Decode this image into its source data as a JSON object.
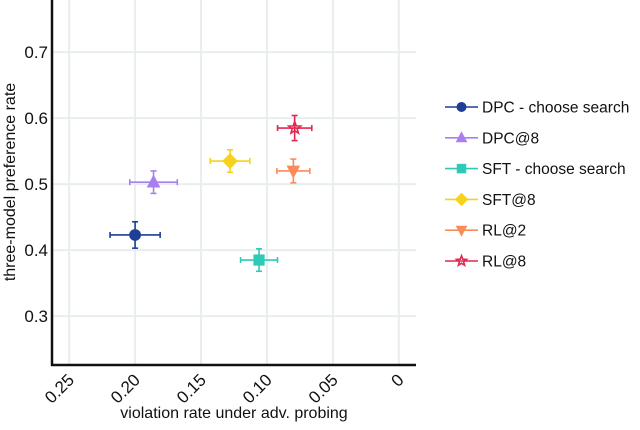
{
  "chart_data": {
    "type": "scatter",
    "title": "",
    "xlabel": "violation rate under adv. probing",
    "ylabel": "three-model preference rate",
    "x_reversed": true,
    "xlim": [
      0.263,
      -0.013
    ],
    "ylim": [
      0.226,
      0.779
    ],
    "xticks": [
      0.25,
      0.2,
      0.15,
      0.1,
      0.05,
      0
    ],
    "xtick_labels": [
      "0.25",
      "0.20",
      "0.15",
      "0.10",
      "0.05",
      "0"
    ],
    "yticks": [
      0.3,
      0.4,
      0.5,
      0.6,
      0.7
    ],
    "ytick_labels": [
      "0.3",
      "0.4",
      "0.5",
      "0.6",
      "0.7"
    ],
    "grid": true,
    "legend_position": "right",
    "series": [
      {
        "name": "DPC - choose search",
        "marker": "circle",
        "color": "#1f3f95",
        "x": 0.2,
        "y": 0.423,
        "xerr": 0.019,
        "yerr": 0.02
      },
      {
        "name": "DPC@8",
        "marker": "triangle-up",
        "color": "#a97ff0",
        "x": 0.186,
        "y": 0.503,
        "xerr": 0.018,
        "yerr": 0.017
      },
      {
        "name": "SFT - choose search",
        "marker": "square",
        "color": "#2ec9b7",
        "x": 0.106,
        "y": 0.385,
        "xerr": 0.014,
        "yerr": 0.017
      },
      {
        "name": "SFT@8",
        "marker": "diamond",
        "color": "#f7d21c",
        "x": 0.128,
        "y": 0.535,
        "xerr": 0.015,
        "yerr": 0.017
      },
      {
        "name": "RL@2",
        "marker": "triangle-down",
        "color": "#fb8c5a",
        "x": 0.08,
        "y": 0.52,
        "xerr": 0.0125,
        "yerr": 0.018
      },
      {
        "name": "RL@8",
        "marker": "star",
        "color": "#e0284f",
        "x": 0.079,
        "y": 0.585,
        "xerr": 0.013,
        "yerr": 0.019
      }
    ]
  }
}
